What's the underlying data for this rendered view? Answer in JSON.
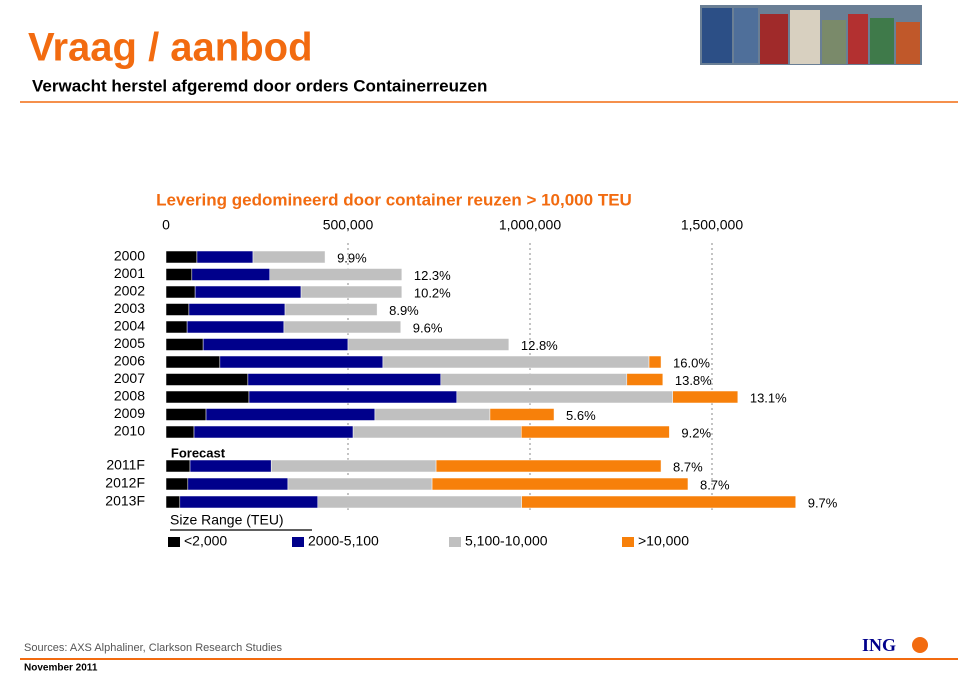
{
  "header": {
    "title": "Vraag / aanbod",
    "subtitle": "Verwacht herstel afgeremd door orders Containerreuzen"
  },
  "chart_data": {
    "type": "stacked-barh",
    "title": "Levering gedomineerd door container reuzen > 10,000 TEU",
    "categories": [
      "2000",
      "2001",
      "2002",
      "2003",
      "2004",
      "2005",
      "2006",
      "2007",
      "2008",
      "2009",
      "2010",
      "2011F",
      "2012F",
      "2013F"
    ],
    "forecast_label": "Forecast",
    "series": [
      {
        "name": "<2,000",
        "color": "#000000",
        "values": [
          85000,
          71000,
          80000,
          63000,
          58000,
          102000,
          148000,
          225000,
          228000,
          110000,
          77000,
          66000,
          60000,
          38000
        ]
      },
      {
        "name": "2000-5,100",
        "color": "#00008b",
        "values": [
          154000,
          214000,
          291000,
          264000,
          266000,
          398000,
          448000,
          530000,
          571000,
          464000,
          437000,
          223000,
          275000,
          379000
        ]
      },
      {
        "name": "5,100-10,000",
        "color": "#c0c0c0",
        "values": [
          198000,
          363000,
          277000,
          253000,
          321000,
          442000,
          731000,
          511000,
          593000,
          316000,
          462000,
          453000,
          396000,
          560000
        ]
      },
      {
        "name": ">10,000",
        "color": "#f7800a",
        "values": [
          0,
          0,
          0,
          0,
          0,
          0,
          33000,
          99000,
          179000,
          176000,
          407000,
          618000,
          703000,
          753000
        ]
      }
    ],
    "share_labels": [
      "9.9%",
      "12.3%",
      "10.2%",
      "8.9%",
      "9.6%",
      "12.8%",
      "16.0%",
      "13.8%",
      "13.1%",
      "5.6%",
      "9.2%",
      "8.7%",
      "8.7%",
      "9.7%"
    ],
    "legend_title": "Size Range (TEU)",
    "xlim": [
      0,
      2000000
    ],
    "xticks": [
      0,
      {
        "value": 500000,
        "label": "500,000"
      },
      {
        "value": 1000000,
        "label": "1,000,000"
      },
      {
        "value": 1500000,
        "label": "1,500,000"
      }
    ],
    "grid": true
  },
  "footer": {
    "sources": "Sources:  AXS Alphaliner, Clarkson Research Studies",
    "date": "November 2011",
    "logo": "ING"
  }
}
